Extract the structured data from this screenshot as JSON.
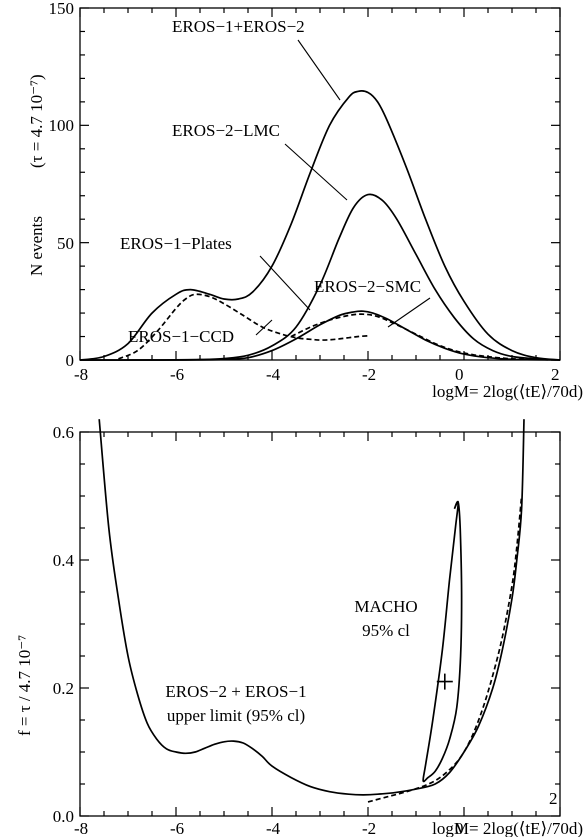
{
  "chart_data": [
    {
      "type": "line",
      "xlim": [
        -8,
        2
      ],
      "ylim": [
        0,
        150
      ],
      "x_ticks": [
        "-8",
        "-6",
        "-4",
        "-2",
        "0",
        "2"
      ],
      "y_ticks": [
        "0",
        "50",
        "100",
        "150"
      ],
      "xlabel": "logM= 2log(⟨tE⟩/70d)",
      "ylabel_text": "N events",
      "ylabel_sub": "(τ = 4.7 10⁻⁷)",
      "series": [
        {
          "name": "EROS−1+EROS−2",
          "style": "solid",
          "x": [
            -8,
            -7.5,
            -7,
            -6.5,
            -6,
            -5.7,
            -5.3,
            -5,
            -4.7,
            -4.4,
            -4,
            -3.6,
            -3.2,
            -2.8,
            -2.4,
            -2.2,
            -2,
            -1.8,
            -1.6,
            -1.2,
            -0.8,
            -0.4,
            0,
            0.5,
            1,
            1.5,
            2
          ],
          "y": [
            0,
            1.5,
            7,
            20,
            28,
            30,
            28,
            26,
            26,
            29,
            40,
            58,
            80,
            100,
            112,
            114.5,
            114,
            110,
            102,
            82,
            60,
            40,
            25,
            11,
            4,
            1,
            0
          ]
        },
        {
          "name": "EROS−2−LMC",
          "style": "solid",
          "x": [
            -8,
            -6.5,
            -5.5,
            -5,
            -4.5,
            -4,
            -3.5,
            -3,
            -2.6,
            -2.3,
            -2,
            -1.7,
            -1.4,
            -1,
            -0.6,
            -0.2,
            0.2,
            0.6,
            1,
            1.5,
            2
          ],
          "y": [
            0,
            0,
            0.2,
            0.6,
            2,
            6,
            14,
            32,
            52,
            65,
            70.5,
            68,
            60,
            45,
            30,
            18,
            9,
            4,
            1.5,
            0.5,
            0
          ]
        },
        {
          "name": "EROS−2−SMC",
          "style": "solid",
          "x": [
            -8,
            -6,
            -5,
            -4.5,
            -4,
            -3.5,
            -3,
            -2.6,
            -2.3,
            -2.1,
            -1.9,
            -1.6,
            -1.2,
            -0.8,
            -0.4,
            0,
            0.5,
            1,
            2
          ],
          "y": [
            0,
            0,
            0.2,
            1,
            4,
            9,
            15,
            19,
            20.5,
            20.8,
            20,
            17.5,
            13,
            8.5,
            5,
            2.5,
            1,
            0.3,
            0
          ]
        },
        {
          "name": "EROS−1−Plates",
          "style": "dashed",
          "x": [
            -7.2,
            -6.8,
            -6.4,
            -6,
            -5.8,
            -5.6,
            -5.3,
            -5,
            -4.6,
            -4.2,
            -3.8,
            -3.5,
            -3.2,
            -3,
            -2.8,
            -2.6,
            -2.4,
            -2.2,
            -2
          ],
          "y": [
            0.5,
            4,
            12,
            22,
            26,
            28,
            27,
            24,
            19,
            14,
            11,
            9.5,
            8.8,
            8.5,
            8.6,
            9,
            9.5,
            10,
            10.3
          ]
        },
        {
          "name": "EROS−1−CCD",
          "style": "dashed",
          "x": [
            -3.6,
            -3.2,
            -2.8,
            -2.4,
            -2.1,
            -1.8,
            -1.4,
            -1,
            -0.6,
            -0.2,
            0.2,
            0.6,
            1,
            1.5,
            2
          ],
          "y": [
            10,
            14,
            17,
            19,
            19.5,
            18.5,
            15,
            11,
            7,
            4,
            2.2,
            1.2,
            0.5,
            0.2,
            0
          ]
        }
      ],
      "annotations": [
        "EROS−1+EROS−2",
        "EROS−2−LMC",
        "EROS−1−Plates",
        "EROS−2−SMC",
        "EROS−1−CCD"
      ]
    },
    {
      "type": "line",
      "xlim": [
        -8,
        2
      ],
      "ylim": [
        0,
        0.6
      ],
      "x_ticks": [
        "-8",
        "-6",
        "-4",
        "-2",
        "0",
        "2"
      ],
      "y_ticks": [
        "0.0",
        "0.2",
        "0.4",
        "0.6"
      ],
      "xlabel": "logM= 2log(⟨tE⟩/70d)",
      "ylabel": "f = τ / 4.7 10⁻⁷",
      "series": [
        {
          "name": "EROS−2 + EROS−1 upper limit (95% cl)",
          "style": "solid",
          "x": [
            -7.6,
            -7.4,
            -7.2,
            -7,
            -6.8,
            -6.6,
            -6.4,
            -6.2,
            -6,
            -5.8,
            -5.6,
            -5.4,
            -5.2,
            -5,
            -4.8,
            -4.6,
            -4.4,
            -4.2,
            -4,
            -3.6,
            -3.2,
            -2.8,
            -2.4,
            -2.1,
            -1.8,
            -1.4,
            -1,
            -0.6,
            -0.3,
            0,
            0.3,
            0.6,
            0.8,
            1,
            1.1,
            1.2,
            1.25
          ],
          "y": [
            0.62,
            0.45,
            0.34,
            0.25,
            0.19,
            0.145,
            0.12,
            0.105,
            0.1,
            0.098,
            0.1,
            0.106,
            0.112,
            0.116,
            0.117,
            0.114,
            0.105,
            0.093,
            0.078,
            0.06,
            0.046,
            0.038,
            0.034,
            0.033,
            0.034,
            0.037,
            0.042,
            0.05,
            0.068,
            0.1,
            0.14,
            0.2,
            0.26,
            0.34,
            0.4,
            0.48,
            0.62
          ]
        },
        {
          "name": "dashed limit",
          "style": "dashed",
          "x": [
            -2,
            -1.6,
            -1.2,
            -0.8,
            -0.5,
            -0.2,
            0,
            0.2,
            0.4,
            0.6,
            0.8,
            1,
            1.1,
            1.2
          ],
          "y": [
            0.022,
            0.03,
            0.038,
            0.048,
            0.06,
            0.08,
            0.1,
            0.13,
            0.17,
            0.22,
            0.28,
            0.36,
            0.42,
            0.5
          ]
        },
        {
          "name": "MACHO 95% cl",
          "style": "solid",
          "x": [
            -0.2,
            -0.12,
            -0.08,
            -0.05,
            -0.07,
            -0.15,
            -0.3,
            -0.45,
            -0.6,
            -0.75,
            -0.85,
            -0.8,
            -0.65,
            -0.45,
            -0.3,
            -0.18,
            -0.12,
            -0.2
          ],
          "y": [
            0.48,
            0.49,
            0.45,
            0.35,
            0.25,
            0.17,
            0.12,
            0.09,
            0.07,
            0.06,
            0.055,
            0.08,
            0.15,
            0.26,
            0.37,
            0.45,
            0.49,
            0.48
          ]
        }
      ],
      "markers": [
        {
          "x": -0.4,
          "y": 0.21,
          "symbol": "+"
        }
      ],
      "annotations": [
        "MACHO",
        "95% cl",
        "EROS−2 + EROS−1",
        "upper limit (95% cl)"
      ]
    }
  ]
}
